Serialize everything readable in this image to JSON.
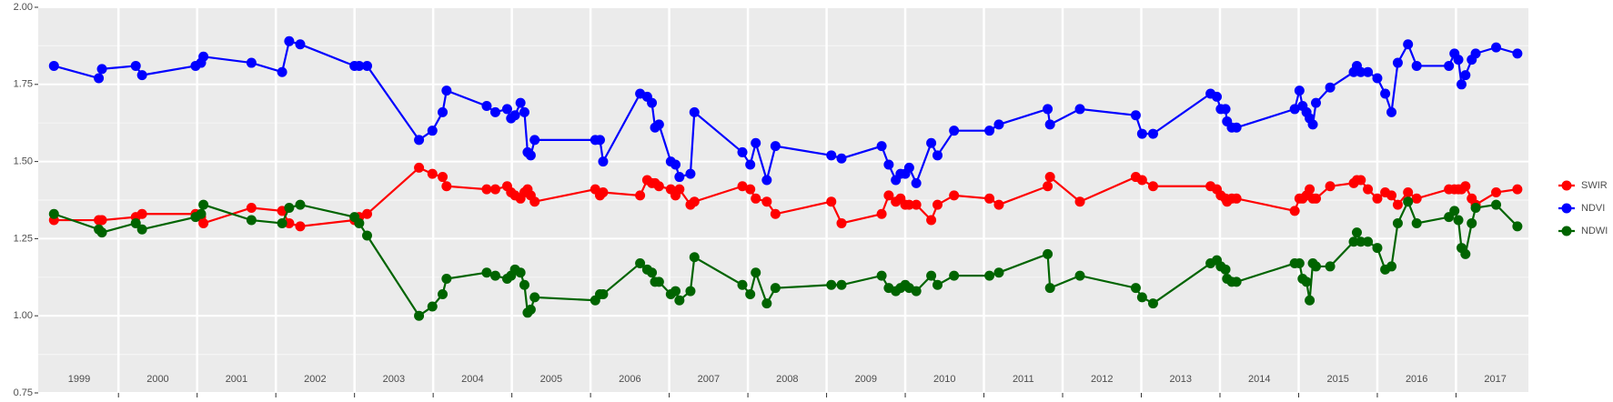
{
  "chart_data": {
    "type": "line",
    "x": [
      1999.18,
      1999.75,
      1999.79,
      2000.22,
      2000.3,
      2000.98,
      2001.05,
      2001.08,
      2001.69,
      2002.08,
      2002.17,
      2002.31,
      2003.0,
      2003.06,
      2003.16,
      2003.82,
      2003.99,
      2004.12,
      2004.17,
      2004.68,
      2004.79,
      2004.94,
      2004.99,
      2005.04,
      2005.11,
      2005.16,
      2005.2,
      2005.24,
      2005.29,
      2006.06,
      2006.12,
      2006.16,
      2006.63,
      2006.72,
      2006.78,
      2006.82,
      2006.87,
      2007.02,
      2007.08,
      2007.13,
      2007.27,
      2007.32,
      2007.93,
      2008.03,
      2008.1,
      2008.24,
      2008.35,
      2009.06,
      2009.19,
      2009.7,
      2009.79,
      2009.88,
      2009.94,
      2010.0,
      2010.05,
      2010.14,
      2010.33,
      2010.41,
      2010.62,
      2011.07,
      2011.19,
      2011.81,
      2011.84,
      2012.22,
      2012.93,
      2013.01,
      2013.15,
      2013.88,
      2013.96,
      2014.01,
      2014.07,
      2014.09,
      2014.15,
      2014.21,
      2014.95,
      2015.01,
      2015.05,
      2015.1,
      2015.14,
      2015.18,
      2015.22,
      2015.4,
      2015.7,
      2015.74,
      2015.79,
      2015.88,
      2016.0,
      2016.1,
      2016.18,
      2016.26,
      2016.39,
      2016.5,
      2016.91,
      2016.98,
      2017.03,
      2017.07,
      2017.12,
      2017.2,
      2017.25,
      2017.51,
      2017.78
    ],
    "series": [
      {
        "name": "SWIR",
        "color": "#ff0000",
        "values": [
          1.31,
          1.31,
          1.31,
          1.32,
          1.33,
          1.33,
          1.32,
          1.3,
          1.35,
          1.34,
          1.3,
          1.29,
          1.31,
          1.32,
          1.33,
          1.48,
          1.46,
          1.45,
          1.42,
          1.41,
          1.41,
          1.42,
          1.4,
          1.39,
          1.38,
          1.4,
          1.41,
          1.39,
          1.37,
          1.41,
          1.39,
          1.4,
          1.39,
          1.44,
          1.43,
          1.43,
          1.42,
          1.41,
          1.39,
          1.41,
          1.36,
          1.37,
          1.42,
          1.41,
          1.38,
          1.37,
          1.33,
          1.37,
          1.3,
          1.33,
          1.39,
          1.37,
          1.38,
          1.36,
          1.36,
          1.36,
          1.31,
          1.36,
          1.39,
          1.38,
          1.36,
          1.42,
          1.45,
          1.37,
          1.45,
          1.44,
          1.42,
          1.42,
          1.41,
          1.39,
          1.38,
          1.37,
          1.38,
          1.38,
          1.34,
          1.38,
          1.38,
          1.39,
          1.41,
          1.38,
          1.38,
          1.42,
          1.43,
          1.44,
          1.44,
          1.41,
          1.38,
          1.4,
          1.39,
          1.36,
          1.4,
          1.38,
          1.41,
          1.41,
          1.41,
          1.41,
          1.42,
          1.38,
          1.36,
          1.4,
          1.41
        ]
      },
      {
        "name": "NDVI",
        "color": "#0000ff",
        "values": [
          1.81,
          1.77,
          1.8,
          1.81,
          1.78,
          1.81,
          1.82,
          1.84,
          1.82,
          1.79,
          1.89,
          1.88,
          1.81,
          1.81,
          1.81,
          1.57,
          1.6,
          1.66,
          1.73,
          1.68,
          1.66,
          1.67,
          1.64,
          1.65,
          1.69,
          1.66,
          1.53,
          1.52,
          1.57,
          1.57,
          1.57,
          1.5,
          1.72,
          1.71,
          1.69,
          1.61,
          1.62,
          1.5,
          1.49,
          1.45,
          1.46,
          1.66,
          1.53,
          1.49,
          1.56,
          1.44,
          1.55,
          1.52,
          1.51,
          1.55,
          1.49,
          1.44,
          1.46,
          1.46,
          1.48,
          1.43,
          1.56,
          1.52,
          1.6,
          1.6,
          1.62,
          1.67,
          1.62,
          1.67,
          1.65,
          1.59,
          1.59,
          1.72,
          1.71,
          1.67,
          1.67,
          1.63,
          1.61,
          1.61,
          1.67,
          1.73,
          1.68,
          1.66,
          1.64,
          1.62,
          1.69,
          1.74,
          1.79,
          1.81,
          1.79,
          1.79,
          1.77,
          1.72,
          1.66,
          1.82,
          1.88,
          1.81,
          1.81,
          1.85,
          1.83,
          1.75,
          1.78,
          1.83,
          1.85,
          1.87,
          1.85
        ]
      },
      {
        "name": "NDWI",
        "color": "#006400",
        "values": [
          1.33,
          1.28,
          1.27,
          1.3,
          1.28,
          1.32,
          1.33,
          1.36,
          1.31,
          1.3,
          1.35,
          1.36,
          1.32,
          1.3,
          1.26,
          1.0,
          1.03,
          1.07,
          1.12,
          1.14,
          1.13,
          1.12,
          1.13,
          1.15,
          1.14,
          1.1,
          1.01,
          1.02,
          1.06,
          1.05,
          1.07,
          1.07,
          1.17,
          1.15,
          1.14,
          1.11,
          1.11,
          1.07,
          1.08,
          1.05,
          1.08,
          1.19,
          1.1,
          1.07,
          1.14,
          1.04,
          1.09,
          1.1,
          1.1,
          1.13,
          1.09,
          1.08,
          1.09,
          1.1,
          1.09,
          1.08,
          1.13,
          1.1,
          1.13,
          1.13,
          1.14,
          1.2,
          1.09,
          1.13,
          1.09,
          1.06,
          1.04,
          1.17,
          1.18,
          1.16,
          1.15,
          1.12,
          1.11,
          1.11,
          1.17,
          1.17,
          1.12,
          1.11,
          1.05,
          1.17,
          1.16,
          1.16,
          1.24,
          1.27,
          1.24,
          1.24,
          1.22,
          1.15,
          1.16,
          1.3,
          1.37,
          1.3,
          1.32,
          1.34,
          1.31,
          1.22,
          1.2,
          1.3,
          1.35,
          1.36,
          1.29
        ]
      }
    ],
    "xlim": [
      1998.98,
      2017.92
    ],
    "xticks": [
      2000,
      2001,
      2002,
      2003,
      2004,
      2005,
      2006,
      2007,
      2008,
      2009,
      2010,
      2011,
      2012,
      2013,
      2014,
      2015,
      2016,
      2017
    ],
    "year_labels": [
      "1999",
      "2000",
      "2001",
      "2002",
      "2003",
      "2004",
      "2005",
      "2006",
      "2007",
      "2008",
      "2009",
      "2010",
      "2011",
      "2012",
      "2013",
      "2014",
      "2015",
      "2016",
      "2017"
    ],
    "ylim": [
      0.75,
      2.0
    ],
    "yticks": [
      {
        "value": 0.75,
        "label": "0.75"
      },
      {
        "value": 1.0,
        "label": "1.00"
      },
      {
        "value": 1.25,
        "label": "1.25"
      },
      {
        "value": 1.5,
        "label": "1.50"
      },
      {
        "value": 1.75,
        "label": "1.75"
      },
      {
        "value": 2.0,
        "label": "2.00"
      }
    ],
    "grid": true,
    "legend": "right"
  }
}
